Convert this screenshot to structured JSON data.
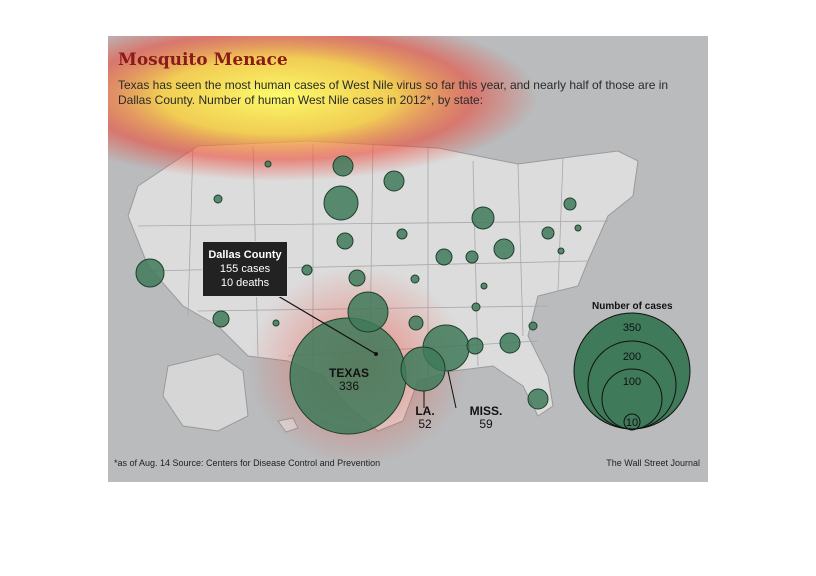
{
  "title": "Mosquito Menace",
  "subtitle": "Texas has seen the most human cases of West Nile virus so far this year, and nearly half of those are in Dallas County. Number of human West Nile cases in 2012*, by state:",
  "callout": {
    "head": "Dallas County",
    "cases": "155 cases",
    "deaths": "10 deaths"
  },
  "labels": {
    "texas": {
      "name": "TEXAS",
      "value": "336"
    },
    "louisiana": {
      "name": "LA.",
      "value": "52"
    },
    "mississippi": {
      "name": "MISS.",
      "value": "59"
    }
  },
  "legend": {
    "title": "Number of cases",
    "values": [
      "350",
      "200",
      "100",
      "10"
    ]
  },
  "footnote": "*as of Aug. 14   Source: Centers for Disease Control and Prevention",
  "credit": "The Wall Street Journal",
  "colors": {
    "bubble": "#3f7a5a",
    "title": "#8b1a1a",
    "heat_core": "#ffff66",
    "heat_edge": "#e8332a"
  }
}
